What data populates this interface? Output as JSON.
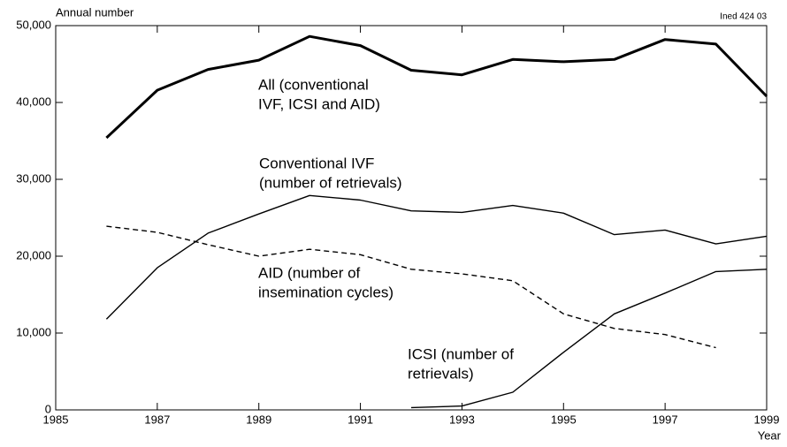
{
  "chart_data": {
    "type": "line",
    "y_label": "Annual number",
    "x_label": "Year",
    "source": "Ined 424 03",
    "x": [
      1986,
      1987,
      1988,
      1989,
      1990,
      1991,
      1992,
      1993,
      1994,
      1995,
      1996,
      1997,
      1998,
      1999
    ],
    "series": [
      {
        "name": "All",
        "color": "#000000",
        "dashed": false,
        "bold": true,
        "values": [
          35400,
          41600,
          44300,
          45500,
          48600,
          47400,
          44200,
          43600,
          45600,
          45300,
          45600,
          48200,
          47600,
          40800
        ]
      },
      {
        "name": "Conventional IVF",
        "color": "#000000",
        "dashed": false,
        "bold": false,
        "values": [
          11800,
          18500,
          23000,
          25500,
          27900,
          27300,
          25900,
          25700,
          26600,
          25600,
          22800,
          23400,
          21600,
          22600
        ]
      },
      {
        "name": "AID",
        "color": "#000000",
        "dashed": true,
        "bold": false,
        "values": [
          23900,
          23100,
          21500,
          20000,
          20900,
          20200,
          18300,
          17700,
          16800,
          12500,
          10600,
          9800,
          8100,
          null
        ]
      },
      {
        "name": "ICSI",
        "color": "#000000",
        "dashed": false,
        "bold": false,
        "values": [
          null,
          null,
          null,
          null,
          null,
          null,
          300,
          500,
          2300,
          7500,
          12500,
          15200,
          18000,
          18300
        ]
      }
    ],
    "annotations": [
      [
        "All (conventional",
        "IVF, ICSI and AID)"
      ],
      [
        "Conventional IVF",
        "(number of retrievals)"
      ],
      [
        "AID (number of",
        "insemination cycles)"
      ],
      [
        "ICSI (number of",
        "retrievals)"
      ]
    ],
    "xlim": [
      1985,
      1999
    ],
    "xticks": [
      1985,
      1987,
      1989,
      1991,
      1993,
      1995,
      1997,
      1999
    ],
    "ylim": [
      0,
      50000
    ],
    "yticks": [
      0,
      {
        "value": 10000,
        "label": "10,000"
      },
      {
        "value": 20000,
        "label": "20,000"
      },
      {
        "value": 30000,
        "label": "30,000"
      },
      {
        "value": 40000,
        "label": "40,000"
      },
      {
        "value": 50000,
        "label": "50,000"
      }
    ]
  }
}
